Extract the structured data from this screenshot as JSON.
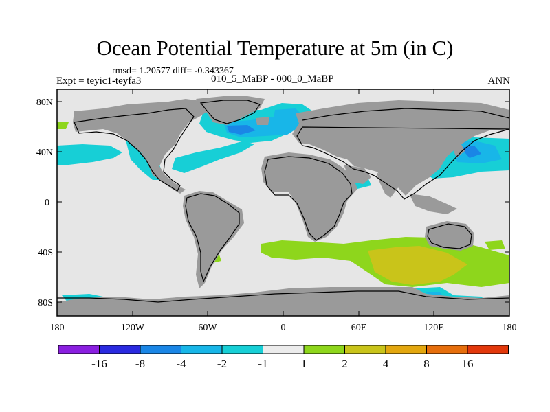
{
  "title": "Ocean Potential Temperature at 5m (in C)",
  "stats": "rmsd= 1.20577 diff= -0.343367",
  "expt": "Expt = teyic1-teyfa3",
  "diff_label": "010_5_MaBP - 000_0_MaBP",
  "season": "ANN",
  "colors": {
    "land": "#9a9a9a",
    "ocean_neutral": "#e6e6e6",
    "cyan": "#17cfd6",
    "light_blue": "#18b6e8",
    "blue": "#1a86e6",
    "green": "#8ed61c",
    "yellow_green": "#c9c41a"
  },
  "y_ticks": [
    "80N",
    "40N",
    "0",
    "40S",
    "80S"
  ],
  "x_ticks": [
    "180",
    "120W",
    "60W",
    "0",
    "60E",
    "120E",
    "180"
  ],
  "colorbar": {
    "colors": [
      "#8a1fe0",
      "#2a2ae0",
      "#1a86e6",
      "#18b6e8",
      "#17cfd6",
      "#ececec",
      "#8ed61c",
      "#c9c41a",
      "#e3a70f",
      "#e66e0c",
      "#e2380b"
    ],
    "labels": [
      "-16",
      "-8",
      "-4",
      "-2",
      "-1",
      "1",
      "2",
      "4",
      "8",
      "16"
    ]
  },
  "chart_data": {
    "type": "heatmap",
    "title": "Ocean Potential Temperature at 5m (in C)",
    "variable": "Ocean potential temperature difference at 5m",
    "units": "C",
    "projection": "cylindrical equidistant",
    "lon_range": [
      -180,
      180
    ],
    "lat_range": [
      -90,
      90
    ],
    "contour_levels": [
      -16,
      -8,
      -4,
      -2,
      -1,
      1,
      2,
      4,
      8,
      16
    ],
    "rmsd": 1.20577,
    "mean_diff": -0.343367,
    "experiment": "teyic1-teyfa3",
    "comparison": "010_5_MaBP - 000_0_MaBP",
    "season": "ANN"
  }
}
